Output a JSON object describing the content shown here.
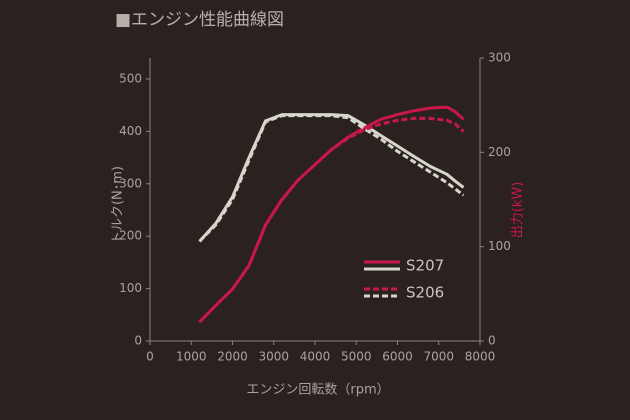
{
  "chart_data": {
    "type": "line",
    "title": "■エンジン性能曲線図",
    "x_label": "エンジン回転数（rpm）",
    "y_label": "トルク(N･m)",
    "y2_label": "出力(kW)",
    "x": [
      1200,
      1600,
      2000,
      2400,
      2800,
      3200,
      3600,
      4000,
      4400,
      4800,
      5200,
      5600,
      6000,
      6400,
      6800,
      7200,
      7400,
      7600
    ],
    "xlim": [
      0,
      8000
    ],
    "xticks": [
      0,
      1000,
      2000,
      3000,
      4000,
      5000,
      6000,
      7000,
      8000
    ],
    "ylim": [
      0,
      540
    ],
    "yticks": [
      0,
      100,
      200,
      300,
      400,
      500
    ],
    "y2lim": [
      0,
      300
    ],
    "y2ticks": [
      0,
      100,
      200,
      300
    ],
    "torque_color": "#d6d6cc",
    "power_color": "#c8174a",
    "series": [
      {
        "name": "S207",
        "dashed": false,
        "torque": [
          190,
          225,
          275,
          350,
          420,
          432,
          432,
          432,
          432,
          430,
          412,
          392,
          372,
          352,
          333,
          318,
          305,
          293
        ],
        "power": [
          20,
          38,
          55,
          80,
          123,
          150,
          171,
          187,
          203,
          216,
          226,
          235,
          240,
          244,
          247,
          248,
          243,
          235
        ]
      },
      {
        "name": "S206",
        "dashed": true,
        "torque": [
          190,
          222,
          270,
          345,
          418,
          430,
          430,
          430,
          430,
          426,
          405,
          385,
          362,
          342,
          322,
          302,
          290,
          278
        ],
        "power": [
          20,
          38,
          55,
          80,
          123,
          150,
          171,
          187,
          203,
          215,
          224,
          230,
          234,
          236,
          236,
          234,
          230,
          222
        ]
      }
    ]
  }
}
